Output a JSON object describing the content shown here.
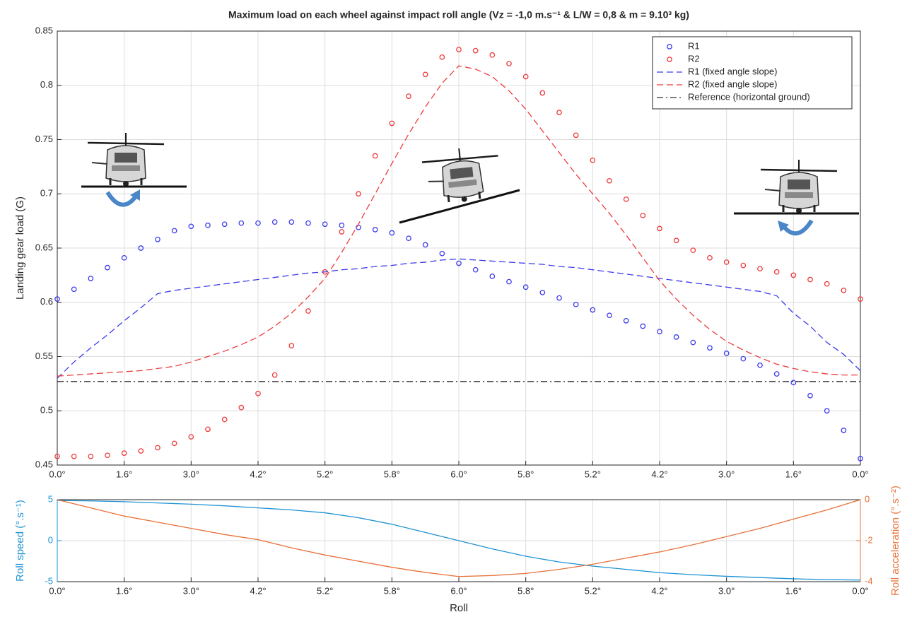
{
  "chart_data": [
    {
      "type": "line",
      "title": "Maximum load on each wheel against impact roll angle (Vz = -1,0 m.s⁻¹ & L/W = 0,8 & m = 9.10³ kg)",
      "ylabel": "Landing gear load (G)",
      "x": [
        0,
        0.25,
        0.5,
        0.75,
        1,
        1.25,
        1.5,
        1.75,
        2,
        2.25,
        2.5,
        2.75,
        3,
        3.25,
        3.5,
        3.75,
        4,
        4.25,
        4.5,
        4.75,
        5,
        5.25,
        5.5,
        5.75,
        6,
        6.25,
        6.5,
        6.75,
        7,
        7.25,
        7.5,
        7.75,
        8,
        8.25,
        8.5,
        8.75,
        9,
        9.25,
        9.5,
        9.75,
        10,
        10.25,
        10.5,
        10.75,
        11,
        11.25,
        11.5,
        11.75,
        12
      ],
      "xlim": [
        0,
        12
      ],
      "xticks": [
        {
          "value": 0,
          "label": "0.0°"
        },
        {
          "value": 1,
          "label": "1.6°"
        },
        {
          "value": 2,
          "label": "3.0°"
        },
        {
          "value": 3,
          "label": "4.2°"
        },
        {
          "value": 4,
          "label": "5.2°"
        },
        {
          "value": 5,
          "label": "5.8°"
        },
        {
          "value": 6,
          "label": "6.0°"
        },
        {
          "value": 7,
          "label": "5.8°"
        },
        {
          "value": 8,
          "label": "5.2°"
        },
        {
          "value": 9,
          "label": "4.2°"
        },
        {
          "value": 10,
          "label": "3.0°"
        },
        {
          "value": 11,
          "label": "1.6°"
        },
        {
          "value": 12,
          "label": "0.0°"
        }
      ],
      "ylim": [
        0.45,
        0.85
      ],
      "yticks": [
        0.45,
        0.5,
        0.55,
        0.6,
        0.65,
        0.7,
        0.75,
        0.8,
        0.85
      ],
      "grid": true,
      "legend": "upper right",
      "series": [
        {
          "name": "R1",
          "color": "#3b3bee",
          "style": "circle",
          "values": [
            0.603,
            0.612,
            0.622,
            0.632,
            0.641,
            0.65,
            0.658,
            0.666,
            0.67,
            0.671,
            0.672,
            0.673,
            0.673,
            0.674,
            0.674,
            0.673,
            0.672,
            0.671,
            0.669,
            0.667,
            0.664,
            0.659,
            0.653,
            0.645,
            0.636,
            0.63,
            0.624,
            0.619,
            0.614,
            0.609,
            0.604,
            0.598,
            0.593,
            0.588,
            0.583,
            0.578,
            0.573,
            0.568,
            0.563,
            0.558,
            0.553,
            0.548,
            0.542,
            0.534,
            0.526,
            0.514,
            0.5,
            0.482,
            0.456
          ]
        },
        {
          "name": "R2",
          "color": "#ee3b3b",
          "style": "circle",
          "values": [
            0.458,
            0.458,
            0.458,
            0.459,
            0.461,
            0.463,
            0.466,
            0.47,
            0.476,
            0.483,
            0.492,
            0.503,
            0.516,
            0.533,
            0.56,
            0.592,
            0.628,
            0.665,
            0.7,
            0.735,
            0.765,
            0.79,
            0.81,
            0.826,
            0.833,
            0.832,
            0.828,
            0.82,
            0.808,
            0.793,
            0.775,
            0.754,
            0.731,
            0.712,
            0.695,
            0.68,
            0.668,
            0.657,
            0.648,
            0.641,
            0.637,
            0.634,
            0.631,
            0.628,
            0.625,
            0.621,
            0.617,
            0.611,
            0.603
          ]
        },
        {
          "name": "R1 (fixed angle slope)",
          "color": "#3b3bee",
          "style": "dashed",
          "values": [
            0.53,
            0.545,
            0.558,
            0.57,
            0.583,
            0.595,
            0.608,
            0.611,
            0.613,
            0.615,
            0.617,
            0.619,
            0.621,
            0.623,
            0.625,
            0.627,
            0.628,
            0.63,
            0.631,
            0.633,
            0.634,
            0.636,
            0.637,
            0.639,
            0.64,
            0.639,
            0.638,
            0.637,
            0.636,
            0.635,
            0.633,
            0.632,
            0.63,
            0.628,
            0.626,
            0.624,
            0.622,
            0.62,
            0.618,
            0.616,
            0.614,
            0.612,
            0.61,
            0.606,
            0.59,
            0.578,
            0.563,
            0.552,
            0.537
          ]
        },
        {
          "name": "R2 (fixed angle slope)",
          "color": "#ee3b3b",
          "style": "dashed",
          "values": [
            0.532,
            0.533,
            0.534,
            0.535,
            0.536,
            0.537,
            0.539,
            0.541,
            0.545,
            0.55,
            0.555,
            0.561,
            0.568,
            0.578,
            0.59,
            0.605,
            0.622,
            0.646,
            0.672,
            0.7,
            0.728,
            0.755,
            0.78,
            0.802,
            0.818,
            0.815,
            0.808,
            0.795,
            0.778,
            0.758,
            0.738,
            0.718,
            0.7,
            0.682,
            0.662,
            0.641,
            0.62,
            0.603,
            0.588,
            0.575,
            0.564,
            0.556,
            0.549,
            0.543,
            0.539,
            0.536,
            0.534,
            0.533,
            0.533
          ]
        },
        {
          "name": "Reference (horizontal ground)",
          "color": "#333333",
          "style": "dash-dot",
          "values": [
            0.527,
            0.527,
            0.527,
            0.527,
            0.527,
            0.527,
            0.527,
            0.527,
            0.527,
            0.527,
            0.527,
            0.527,
            0.527,
            0.527,
            0.527,
            0.527,
            0.527,
            0.527,
            0.527,
            0.527,
            0.527,
            0.527,
            0.527,
            0.527,
            0.527,
            0.527,
            0.527,
            0.527,
            0.527,
            0.527,
            0.527,
            0.527,
            0.527,
            0.527,
            0.527,
            0.527,
            0.527,
            0.527,
            0.527,
            0.527,
            0.527,
            0.527,
            0.527,
            0.527,
            0.527,
            0.527,
            0.527,
            0.527,
            0.527
          ]
        }
      ]
    },
    {
      "type": "line",
      "xlabel": "Roll",
      "ylabel": "Roll speed (°.s⁻¹)",
      "y2label": "Roll acceleration (°.s⁻²)",
      "x": [
        0,
        0.5,
        1,
        1.5,
        2,
        2.5,
        3,
        3.5,
        4,
        4.5,
        5,
        5.5,
        6,
        6.5,
        7,
        7.5,
        8,
        8.5,
        9,
        9.5,
        10,
        10.5,
        11,
        11.5,
        12
      ],
      "xlim": [
        0,
        12
      ],
      "xticks": [
        {
          "value": 0,
          "label": "0.0°"
        },
        {
          "value": 1,
          "label": "1.6°"
        },
        {
          "value": 2,
          "label": "3.0°"
        },
        {
          "value": 3,
          "label": "4.2°"
        },
        {
          "value": 4,
          "label": "5.2°"
        },
        {
          "value": 5,
          "label": "5.8°"
        },
        {
          "value": 6,
          "label": "6.0°"
        },
        {
          "value": 7,
          "label": "5.8°"
        },
        {
          "value": 8,
          "label": "5.2°"
        },
        {
          "value": 9,
          "label": "4.2°"
        },
        {
          "value": 10,
          "label": "3.0°"
        },
        {
          "value": 11,
          "label": "1.6°"
        },
        {
          "value": 12,
          "label": "0.0°"
        }
      ],
      "ylim": [
        -5,
        5
      ],
      "yticks": [
        -5,
        0,
        5
      ],
      "y2lim": [
        -4,
        0
      ],
      "y2ticks": [
        -4,
        -2,
        0
      ],
      "grid": true,
      "series": [
        {
          "color": "#1f93d3",
          "style": "solid",
          "values": [
            4.9,
            4.85,
            4.75,
            4.6,
            4.45,
            4.25,
            4.0,
            3.75,
            3.4,
            2.8,
            2.0,
            1.0,
            0.0,
            -1.0,
            -1.9,
            -2.6,
            -3.1,
            -3.5,
            -3.9,
            -4.15,
            -4.35,
            -4.5,
            -4.65,
            -4.75,
            -4.8
          ]
        },
        {
          "color": "#e8713a",
          "style": "solid",
          "axis": "y2",
          "values": [
            0,
            -0.4,
            -0.8,
            -1.1,
            -1.4,
            -1.7,
            -1.95,
            -2.35,
            -2.7,
            -3.0,
            -3.3,
            -3.55,
            -3.75,
            -3.7,
            -3.6,
            -3.4,
            -3.15,
            -2.85,
            -2.55,
            -2.2,
            -1.8,
            -1.4,
            -0.95,
            -0.5,
            0
          ]
        }
      ]
    }
  ]
}
